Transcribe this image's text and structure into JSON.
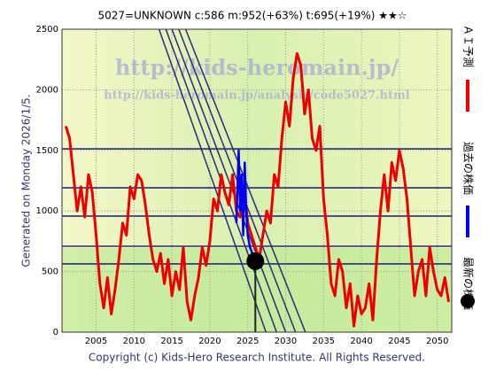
{
  "chart_data": {
    "type": "line",
    "title": "5027=UNKNOWN    c:586  m:952(+63%)  t:695(+19%)  ★★☆",
    "side_label": "Generated on Monday 2026/1/5.",
    "footer": "Copyright (c) Kids-Hero Research Institute. All Rights Reserved.",
    "watermarks": [
      "http://kids-heromain.jp/",
      "http://kids-heromain.jp/analysis/code5027.html"
    ],
    "xlim": [
      2000.5,
      2051.9
    ],
    "ylim": [
      0,
      2500
    ],
    "xticks": [
      2005,
      2010,
      2015,
      2020,
      2025,
      2030,
      2035,
      2040,
      2045,
      2050
    ],
    "yticks": [
      0,
      500,
      1000,
      1500,
      2000,
      2500
    ],
    "grid": true,
    "levels": [
      1513,
      1191,
      958,
      709,
      563
    ],
    "level_color": "#2a2a7a",
    "trend_lines": [
      {
        "x": [
          2013.3,
          2027.4
        ],
        "y": [
          2500,
          0
        ]
      },
      {
        "x": [
          2014.2,
          2028.8
        ],
        "y": [
          2500,
          0
        ]
      },
      {
        "x": [
          2015.0,
          2030.0
        ],
        "y": [
          2500,
          0
        ]
      },
      {
        "x": [
          2015.9,
          2031.3
        ],
        "y": [
          2500,
          0
        ]
      },
      {
        "x": [
          2016.8,
          2032.6
        ],
        "y": [
          2500,
          0
        ]
      }
    ],
    "series": [
      {
        "name": "ＡＩ予測",
        "color": "#ee0000",
        "x": [
          2001,
          2001.5,
          2002,
          2002.5,
          2003,
          2003.5,
          2004,
          2004.5,
          2005,
          2005.5,
          2006,
          2006.5,
          2007,
          2007.5,
          2008,
          2008.5,
          2009,
          2009.5,
          2010,
          2010.5,
          2011,
          2011.5,
          2012,
          2012.5,
          2013,
          2013.5,
          2014,
          2014.5,
          2015,
          2015.5,
          2016,
          2016.5,
          2017,
          2017.5,
          2018,
          2018.5,
          2019,
          2019.5,
          2020,
          2020.5,
          2021,
          2021.5,
          2022,
          2022.5,
          2023,
          2023.5,
          2024,
          2024.5,
          2025,
          2025.5,
          2026,
          2026.5,
          2027,
          2027.5,
          2028,
          2028.5,
          2029,
          2029.5,
          2030,
          2030.5,
          2031,
          2031.5,
          2032,
          2032.5,
          2033,
          2033.5,
          2034,
          2034.5,
          2035,
          2035.5,
          2036,
          2036.5,
          2037,
          2037.5,
          2038,
          2038.5,
          2039,
          2039.5,
          2040,
          2040.5,
          2041,
          2041.5,
          2042,
          2042.5,
          2043,
          2043.5,
          2044,
          2044.5,
          2045,
          2045.5,
          2046,
          2046.5,
          2047,
          2047.5,
          2048,
          2048.5,
          2049,
          2049.5,
          2050,
          2050.5,
          2051,
          2051.5
        ],
        "values": [
          1700,
          1600,
          1300,
          1000,
          1200,
          950,
          1300,
          1150,
          800,
          400,
          200,
          450,
          150,
          350,
          600,
          900,
          800,
          1200,
          1100,
          1300,
          1250,
          1050,
          800,
          600,
          500,
          650,
          400,
          600,
          300,
          500,
          350,
          700,
          250,
          100,
          300,
          450,
          700,
          550,
          750,
          1100,
          1000,
          1300,
          1150,
          1050,
          1300,
          1000,
          950,
          1200,
          900,
          800,
          700,
          600,
          800,
          1000,
          900,
          1300,
          1200,
          1600,
          1900,
          1700,
          2100,
          2300,
          2200,
          1800,
          2000,
          1600,
          1500,
          1700,
          1100,
          800,
          400,
          300,
          600,
          500,
          200,
          400,
          50,
          300,
          150,
          200,
          400,
          100,
          600,
          1000,
          1300,
          1000,
          1400,
          1250,
          1500,
          1350,
          1100,
          700,
          300,
          500,
          600,
          300,
          700,
          500,
          350,
          300,
          450,
          250
        ]
      },
      {
        "name": "過去の株価",
        "color": "#0000ee",
        "x": [
          2023.5,
          2023.8,
          2024,
          2024.2,
          2024.4,
          2024.6,
          2024.8,
          2025,
          2025.3,
          2025.6,
          2025.8
        ],
        "values": [
          900,
          1500,
          1000,
          1300,
          800,
          1400,
          1000,
          800,
          700,
          650,
          600
        ]
      },
      {
        "name": "最新の株価",
        "color": "#000000",
        "x": [
          2026
        ],
        "values": [
          586
        ]
      }
    ]
  }
}
